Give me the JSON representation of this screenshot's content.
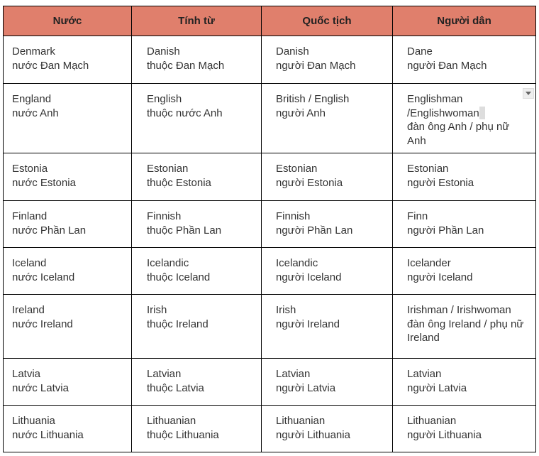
{
  "table": {
    "headers": [
      "Nước",
      "Tính từ",
      "Quốc tịch",
      "Người dân"
    ],
    "header_color": "#e07f6c",
    "rows": [
      [
        [
          "Denmark",
          "nước Đan Mạch"
        ],
        [
          "Danish",
          "thuộc Đan Mạch"
        ],
        [
          "Danish",
          "người Đan Mạch"
        ],
        [
          "Dane",
          "người Đan Mạch"
        ]
      ],
      [
        [
          "England",
          "nước Anh"
        ],
        [
          "English",
          "thuộc nước Anh"
        ],
        [
          "British / English",
          "người Anh"
        ],
        [
          "Englishman",
          "/Englishwoman",
          "đàn ông Anh / phụ nữ Anh"
        ]
      ],
      [
        [
          "Estonia",
          "nước Estonia"
        ],
        [
          "Estonian",
          "thuộc Estonia"
        ],
        [
          "Estonian",
          "người Estonia"
        ],
        [
          "Estonian",
          "người Estonia"
        ]
      ],
      [
        [
          "Finland",
          "nước Phần Lan"
        ],
        [
          "Finnish",
          "thuộc Phần Lan"
        ],
        [
          "Finnish",
          "người Phần Lan"
        ],
        [
          "Finn",
          "người Phần Lan"
        ]
      ],
      [
        [
          "Iceland",
          "nước Iceland"
        ],
        [
          "Icelandic",
          "thuộc Iceland"
        ],
        [
          "Icelandic",
          "người Iceland"
        ],
        [
          "Icelander",
          "người Iceland"
        ]
      ],
      [
        [
          "Ireland",
          "nước Ireland"
        ],
        [
          "Irish",
          "thuộc Ireland"
        ],
        [
          "Irish",
          "người Ireland"
        ],
        [
          "Irishman / Irishwoman",
          "đàn ông Ireland / phụ nữ Ireland"
        ]
      ],
      [
        [
          "Latvia",
          "nước Latvia"
        ],
        [
          "Latvian",
          "thuộc Latvia"
        ],
        [
          "Latvian",
          "người Latvia"
        ],
        [
          "Latvian",
          "người Latvia"
        ]
      ],
      [
        [
          "Lithuania",
          "nước Lithuania"
        ],
        [
          "Lithuanian",
          "thuộc Lithuania"
        ],
        [
          "Lithuanian",
          "người Lithuania"
        ],
        [
          "Lithuanian",
          "người Lithuania"
        ]
      ]
    ]
  }
}
